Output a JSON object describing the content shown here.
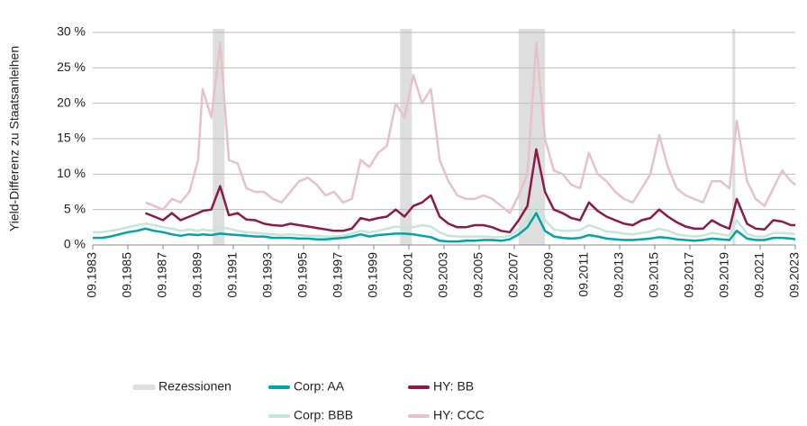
{
  "chart_data": {
    "type": "line",
    "y_label": "Yield-Differenz zu Staatsanleihen",
    "x": [
      "09.1983",
      "03.1984",
      "09.1984",
      "03.1985",
      "09.1985",
      "03.1986",
      "09.1986",
      "03.1987",
      "09.1987",
      "03.1988",
      "09.1988",
      "03.1989",
      "09.1989",
      "12.1989",
      "06.1990",
      "12.1990",
      "06.1991",
      "12.1991",
      "06.1992",
      "12.1992",
      "06.1993",
      "12.1993",
      "06.1994",
      "12.1994",
      "06.1995",
      "12.1995",
      "06.1996",
      "12.1996",
      "06.1997",
      "12.1997",
      "06.1998",
      "12.1998",
      "06.1999",
      "12.1999",
      "06.2000",
      "12.2000",
      "06.2001",
      "12.2001",
      "06.2002",
      "12.2002",
      "06.2003",
      "12.2003",
      "06.2004",
      "12.2004",
      "06.2005",
      "12.2005",
      "06.2006",
      "12.2006",
      "06.2007",
      "12.2007",
      "06.2008",
      "12.2008",
      "06.2009",
      "12.2009",
      "06.2010",
      "12.2010",
      "06.2011",
      "12.2011",
      "06.2012",
      "12.2012",
      "06.2013",
      "12.2013",
      "06.2014",
      "12.2014",
      "06.2015",
      "12.2015",
      "06.2016",
      "12.2016",
      "06.2017",
      "12.2017",
      "06.2018",
      "12.2018",
      "06.2019",
      "12.2019",
      "05.2020",
      "12.2020",
      "06.2021",
      "12.2021",
      "06.2022",
      "12.2022",
      "06.2023",
      "09.2023"
    ],
    "series": [
      {
        "name": "Corp: AA",
        "color": "#00a3a6",
        "values": [
          1.0,
          1.0,
          1.2,
          1.5,
          1.8,
          2.0,
          2.3,
          2.0,
          1.8,
          1.5,
          1.3,
          1.5,
          1.4,
          1.5,
          1.4,
          1.6,
          1.5,
          1.4,
          1.3,
          1.2,
          1.2,
          1.0,
          1.0,
          1.0,
          0.9,
          0.9,
          0.8,
          0.8,
          0.9,
          1.0,
          1.2,
          1.5,
          1.2,
          1.4,
          1.5,
          1.6,
          1.6,
          1.5,
          1.3,
          1.1,
          0.6,
          0.5,
          0.5,
          0.6,
          0.6,
          0.7,
          0.7,
          0.6,
          0.8,
          1.5,
          2.5,
          4.5,
          2.0,
          1.2,
          1.0,
          0.9,
          1.0,
          1.4,
          1.2,
          0.9,
          0.8,
          0.7,
          0.7,
          0.8,
          0.9,
          1.1,
          1.0,
          0.8,
          0.7,
          0.6,
          0.7,
          0.9,
          0.8,
          0.7,
          2.0,
          0.9,
          0.7,
          0.7,
          1.0,
          1.0,
          0.9,
          0.8
        ]
      },
      {
        "name": "HY: BB",
        "color": "#8b1a4a",
        "values": [
          null,
          null,
          null,
          null,
          null,
          null,
          4.5,
          4.0,
          3.5,
          4.5,
          3.5,
          4.0,
          4.5,
          4.8,
          5.0,
          8.3,
          4.2,
          4.5,
          3.6,
          3.5,
          3.0,
          2.8,
          2.7,
          3.0,
          2.8,
          2.6,
          2.4,
          2.2,
          2.0,
          2.0,
          2.3,
          3.8,
          3.5,
          3.8,
          4.0,
          5.0,
          4.0,
          5.5,
          6.0,
          7.0,
          4.0,
          3.0,
          2.5,
          2.5,
          2.8,
          2.8,
          2.5,
          2.0,
          1.8,
          3.5,
          5.5,
          13.5,
          7.5,
          5.0,
          4.5,
          3.8,
          3.5,
          6.0,
          4.8,
          4.0,
          3.5,
          3.0,
          2.8,
          3.5,
          3.8,
          5.0,
          4.0,
          3.2,
          2.6,
          2.3,
          2.3,
          3.5,
          2.8,
          2.3,
          6.5,
          3.0,
          2.3,
          2.2,
          3.5,
          3.3,
          2.8,
          2.8
        ]
      },
      {
        "name": "Corp: BBB",
        "color": "#c5e5d8",
        "values": [
          1.8,
          1.8,
          2.0,
          2.2,
          2.5,
          2.8,
          3.0,
          2.8,
          2.5,
          2.3,
          2.0,
          2.2,
          2.0,
          2.2,
          2.0,
          2.5,
          2.3,
          2.0,
          1.8,
          1.7,
          1.6,
          1.5,
          1.4,
          1.5,
          1.4,
          1.3,
          1.3,
          1.2,
          1.2,
          1.3,
          1.6,
          2.0,
          1.8,
          2.0,
          2.3,
          2.6,
          2.4,
          2.5,
          2.8,
          2.6,
          1.8,
          1.3,
          1.2,
          1.2,
          1.2,
          1.2,
          1.1,
          1.1,
          1.3,
          2.2,
          3.5,
          6.0,
          3.5,
          2.2,
          2.0,
          2.0,
          2.1,
          2.8,
          2.4,
          1.9,
          1.8,
          1.6,
          1.5,
          1.7,
          1.9,
          2.3,
          2.0,
          1.5,
          1.3,
          1.2,
          1.3,
          1.7,
          1.5,
          1.3,
          3.5,
          1.6,
          1.2,
          1.2,
          1.7,
          1.7,
          1.6,
          1.5
        ]
      },
      {
        "name": "HY: CCC",
        "color": "#e6c1cb",
        "values": [
          null,
          null,
          null,
          null,
          null,
          null,
          6.0,
          5.5,
          5.0,
          6.5,
          6.0,
          7.5,
          12,
          22,
          18,
          28.5,
          12,
          11.5,
          8,
          7.5,
          7.5,
          6.5,
          6,
          7.5,
          9,
          9.5,
          8.5,
          7,
          7.5,
          6.0,
          6.5,
          12,
          11,
          13,
          14,
          20,
          18,
          24,
          20,
          22,
          12,
          9,
          7,
          6.5,
          6.5,
          7,
          6.5,
          5.5,
          4.5,
          7,
          10,
          28.5,
          15,
          10.5,
          10,
          8.5,
          8,
          13,
          10,
          9,
          7.5,
          6.5,
          6,
          8,
          10,
          15.5,
          11,
          8,
          7,
          6.5,
          6,
          9,
          9,
          8,
          17.5,
          9,
          6.5,
          5.5,
          8,
          10.5,
          9,
          8.5
        ]
      }
    ],
    "recessions": {
      "name": "Rezessionen",
      "color": "#dedede",
      "periods": [
        [
          "07.1990",
          "03.1991"
        ],
        [
          "03.2001",
          "11.2001"
        ],
        [
          "12.2007",
          "06.2009"
        ],
        [
          "02.2020",
          "04.2020"
        ]
      ]
    },
    "xlim": [
      "09.1983",
      "09.2023"
    ],
    "xticks": [
      "09.1983",
      "09.1985",
      "09.1987",
      "09.1989",
      "09.1991",
      "09.1993",
      "09.1995",
      "09.1997",
      "09.1999",
      "09.2001",
      "09.2003",
      "09.2005",
      "09.2007",
      "09.2009",
      "09.2011",
      "09.2013",
      "09.2015",
      "09.2017",
      "09.2019",
      "09.2021",
      "09.2023"
    ],
    "ylim": [
      0,
      30
    ],
    "yticks": [
      {
        "value": 0,
        "label": "0 %"
      },
      {
        "value": 5,
        "label": "5 %"
      },
      {
        "value": 10,
        "label": "10 %"
      },
      {
        "value": 15,
        "label": "15 %"
      },
      {
        "value": 20,
        "label": "20 %"
      },
      {
        "value": 25,
        "label": "25 %"
      },
      {
        "value": 30,
        "label": "30 %"
      }
    ],
    "grid": true,
    "legend": "bottom"
  }
}
